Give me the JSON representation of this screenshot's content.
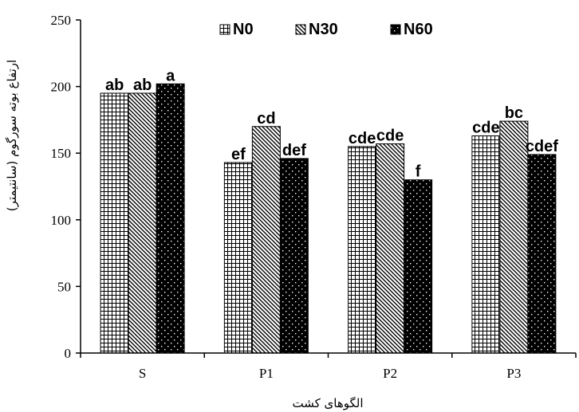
{
  "chart_data": {
    "type": "bar",
    "categories": [
      "S",
      "P1",
      "P2",
      "P3"
    ],
    "series": [
      {
        "name": "N0",
        "pattern": "grid",
        "values": [
          195,
          143,
          155,
          163
        ],
        "labels": [
          "ab",
          "ef",
          "cde",
          "cde"
        ]
      },
      {
        "name": "N30",
        "pattern": "diagonal",
        "values": [
          195,
          170,
          157,
          174
        ],
        "labels": [
          "ab",
          "cd",
          "cde",
          "bc"
        ]
      },
      {
        "name": "N60",
        "pattern": "dots",
        "values": [
          202,
          146,
          130,
          149
        ],
        "labels": [
          "a",
          "def",
          "f",
          "cdef"
        ]
      }
    ],
    "xlabel": "الگوهای کشت",
    "ylabel": "ارتفاع بوته سورگوم (سانتیمتر)",
    "ylim": [
      0,
      250
    ],
    "yticks": [
      0,
      50,
      100,
      150,
      200,
      250
    ],
    "legend_position": "top",
    "grid": false,
    "bar_color": "#000000"
  }
}
